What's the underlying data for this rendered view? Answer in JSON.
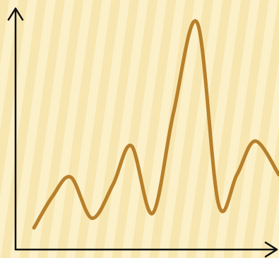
{
  "chart_data": {
    "type": "line",
    "title": "",
    "xlabel": "",
    "ylabel": "",
    "grid": false,
    "x_ticks_labeled": false,
    "y_ticks_labeled": false,
    "xlim": [
      0,
      100
    ],
    "ylim": [
      0,
      100
    ],
    "series": [
      {
        "x": [
          7,
          14,
          21,
          29,
          37,
          44,
          52,
          60,
          69,
          77,
          84,
          91,
          100
        ],
        "y": [
          9,
          22,
          30,
          13,
          27,
          43,
          15,
          57,
          94,
          19,
          31,
          45,
          31
        ]
      }
    ]
  },
  "colors": {
    "background": "#f7e6b0",
    "background_stripe": "#fbf0c8",
    "curve": "#b87f2a",
    "axes": "#111111"
  }
}
